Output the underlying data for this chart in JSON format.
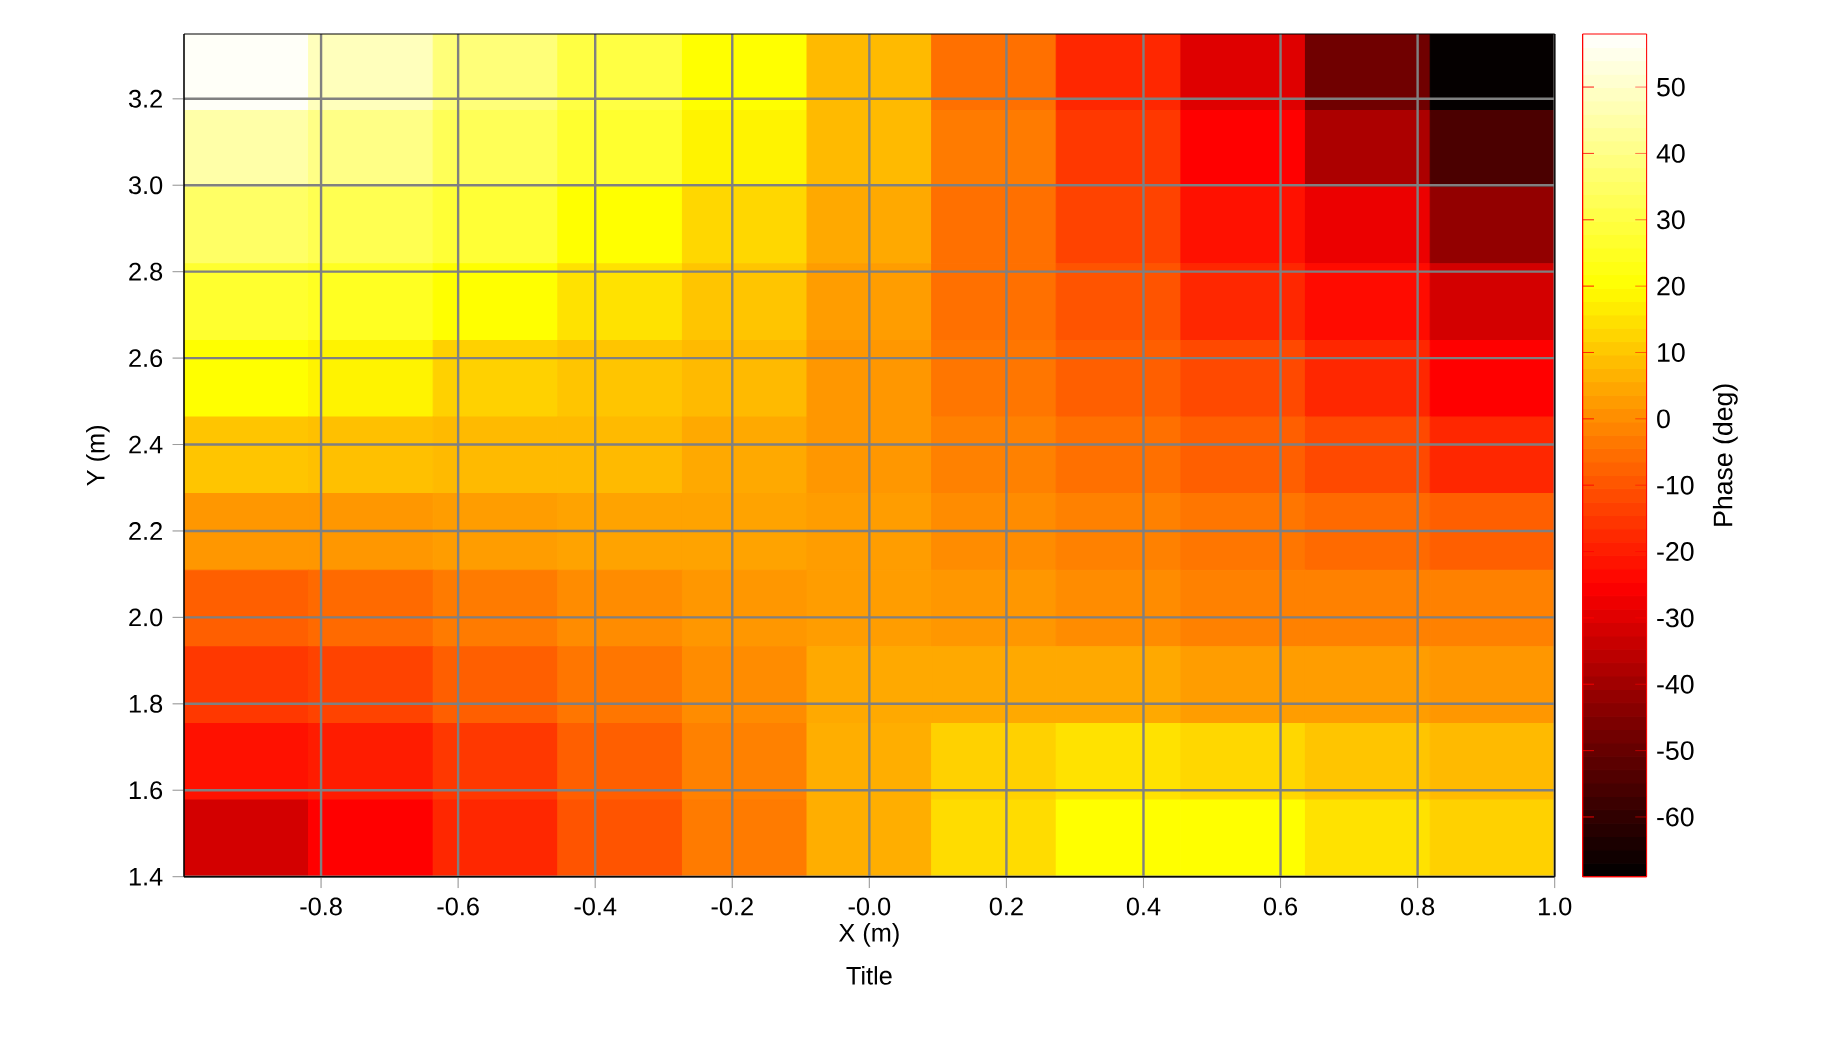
{
  "chart_data": {
    "type": "heatmap",
    "title": "Title",
    "xlabel": "X (m)",
    "ylabel": "Y (m)",
    "clabel": "Phase (deg)",
    "cells": [
      [
        57,
        48,
        38,
        30,
        20,
        8,
        -5,
        -18,
        -30,
        -48,
        -68
      ],
      [
        45,
        40,
        33,
        27,
        18,
        8,
        -3,
        -15,
        -25,
        -38,
        -55
      ],
      [
        35,
        32,
        28,
        20,
        13,
        5,
        -5,
        -13,
        -22,
        -28,
        -42
      ],
      [
        27,
        25,
        20,
        15,
        10,
        3,
        -5,
        -10,
        -18,
        -23,
        -32
      ],
      [
        20,
        18,
        12,
        10,
        8,
        2,
        -4,
        -8,
        -12,
        -18,
        -25
      ],
      [
        10,
        9,
        8,
        8,
        5,
        2,
        -2,
        -5,
        -8,
        -12,
        -18
      ],
      [
        2,
        2,
        3,
        4,
        4,
        3,
        0,
        -2,
        -4,
        -6,
        -8
      ],
      [
        -8,
        -6,
        -3,
        0,
        2,
        3,
        2,
        0,
        -2,
        -2,
        -2
      ],
      [
        -15,
        -13,
        -8,
        -4,
        0,
        5,
        5,
        5,
        3,
        3,
        2
      ],
      [
        -22,
        -20,
        -15,
        -8,
        -2,
        6,
        12,
        15,
        13,
        10,
        8
      ],
      [
        -32,
        -25,
        -18,
        -10,
        -3,
        6,
        14,
        20,
        20,
        15,
        12
      ]
    ],
    "xlim": [
      -1.0,
      1.0
    ],
    "ylim": [
      1.4,
      3.35
    ],
    "xticks": [
      -0.8,
      -0.6,
      -0.4,
      -0.2,
      {
        "value": 0,
        "label": "-0.0"
      },
      0.2,
      0.4,
      0.6,
      0.8,
      {
        "value": 1.0,
        "label": "1.0"
      }
    ],
    "yticks": [
      1.4,
      1.6,
      1.8,
      {
        "value": 2.0,
        "label": "2.0"
      },
      2.2,
      2.4,
      2.6,
      2.8,
      {
        "value": 3.0,
        "label": "3.0"
      },
      3.2
    ],
    "clim": [
      -69,
      58
    ],
    "cticks": [
      -60,
      -50,
      -40,
      -30,
      -20,
      -10,
      0,
      10,
      20,
      30,
      40,
      50
    ],
    "grid": true
  }
}
